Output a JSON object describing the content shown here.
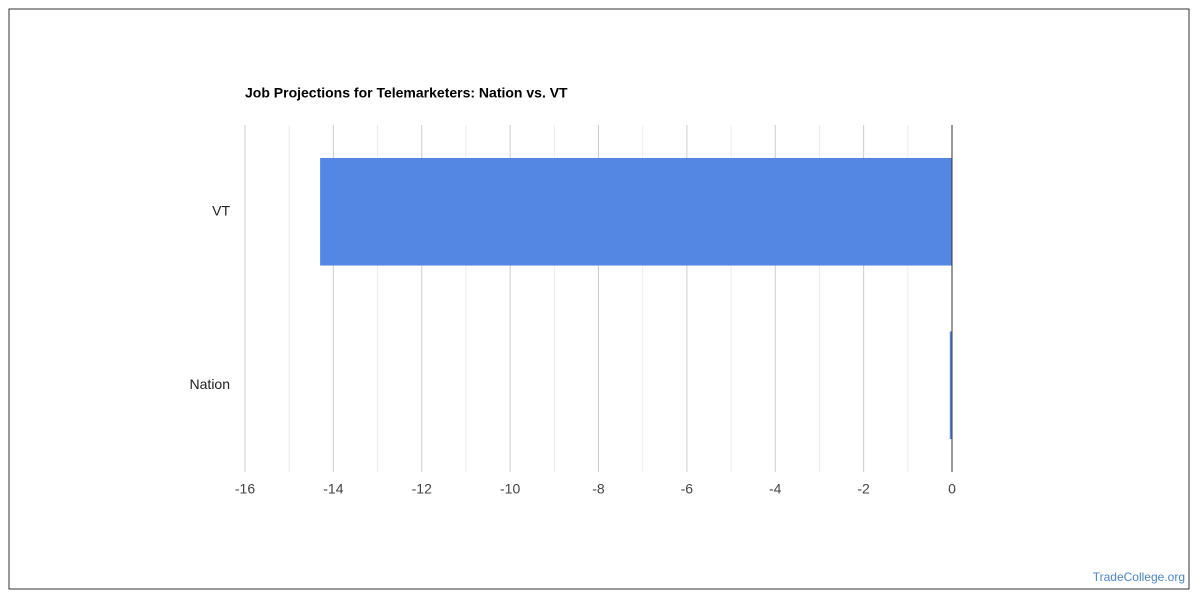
{
  "chart_data": {
    "type": "bar",
    "orientation": "horizontal",
    "title": "Job Projections for Telemarketers: Nation vs. VT",
    "categories": [
      "VT",
      "Nation"
    ],
    "values": [
      -14.3,
      -0.05
    ],
    "color": "#5486e3",
    "xlim": [
      -16,
      0
    ],
    "xticks": [
      -16,
      -14,
      -12,
      -10,
      -8,
      -6,
      -4,
      -2,
      0
    ],
    "xminorticks": [
      -15,
      -13,
      -11,
      -9,
      -7,
      -5,
      -3,
      -1
    ],
    "grid": true,
    "watermark": "TradeCollege.org"
  }
}
